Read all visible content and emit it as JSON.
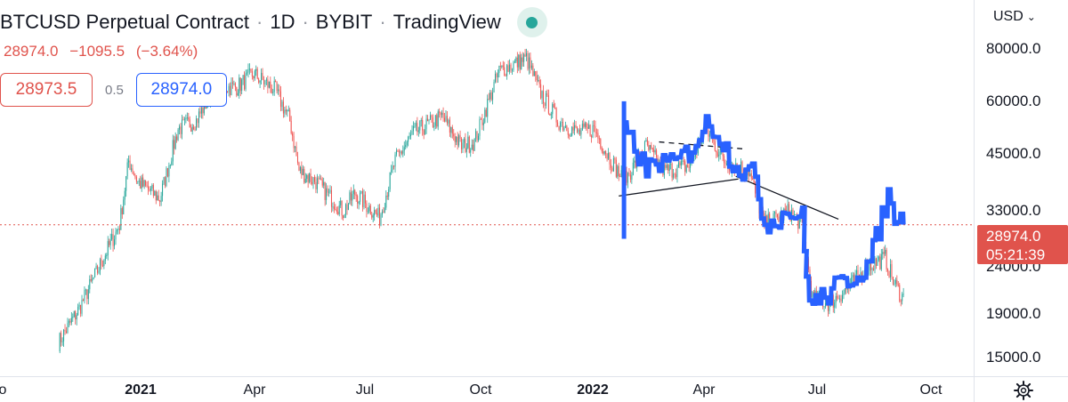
{
  "header": {
    "symbol": "BTCUSD Perpetual Contract",
    "separator": "·",
    "interval": "1D",
    "exchange": "BYBIT",
    "source": "TradingView"
  },
  "quote": {
    "last": "28974.0",
    "change": "−1095.5",
    "change_pct": "(−3.64%)"
  },
  "bid_ask": {
    "bid": "28973.5",
    "spread": "0.5",
    "ask": "28974.0"
  },
  "price_axis": {
    "currency": "USD",
    "labels": [
      "80000.0",
      "60000.0",
      "45000.0",
      "33000.0",
      "24000.0",
      "19000.0",
      "15000.0"
    ]
  },
  "time_axis": {
    "labels": [
      {
        "text": "o",
        "bold": false
      },
      {
        "text": "2021",
        "bold": true
      },
      {
        "text": "Apr",
        "bold": false
      },
      {
        "text": "Jul",
        "bold": false
      },
      {
        "text": "Oct",
        "bold": false
      },
      {
        "text": "2022",
        "bold": true
      },
      {
        "text": "Apr",
        "bold": false
      },
      {
        "text": "Jul",
        "bold": false
      },
      {
        "text": "Oct",
        "bold": false
      }
    ]
  },
  "current_price": {
    "price": "28974.0",
    "countdown": "05:21:39"
  },
  "colors": {
    "up": "#26a69a",
    "down": "#ef5350",
    "drawing": "#2962ff",
    "current_line": "#e0534c"
  },
  "chart_data": {
    "type": "candlestick",
    "interval": "1D",
    "scale": "log",
    "y_ticks": [
      80000,
      60000,
      45000,
      33000,
      24000,
      19000,
      15000
    ],
    "current_price": 28974.0,
    "price_series": {
      "x": [
        "2020-11-15",
        "2020-12-01",
        "2020-12-15",
        "2021-01-01",
        "2021-01-08",
        "2021-01-15",
        "2021-02-01",
        "2021-02-15",
        "2021-03-01",
        "2021-03-15",
        "2021-04-01",
        "2021-04-14",
        "2021-05-01",
        "2021-05-12",
        "2021-05-19",
        "2021-06-01",
        "2021-06-22",
        "2021-07-01",
        "2021-07-20",
        "2021-08-01",
        "2021-08-15",
        "2021-09-06",
        "2021-09-21",
        "2021-10-01",
        "2021-10-20",
        "2021-11-10",
        "2021-11-20",
        "2021-12-04",
        "2021-12-20",
        "2022-01-01",
        "2022-01-10",
        "2022-01-24",
        "2022-02-10",
        "2022-02-24",
        "2022-03-15",
        "2022-03-28",
        "2022-04-11",
        "2022-04-30",
        "2022-05-12",
        "2022-05-31",
        "2022-06-10",
        "2022-06-18",
        "2022-07-01",
        "2022-07-15",
        "2022-07-31",
        "2022-08-13",
        "2022-08-20",
        "2022-08-27"
      ],
      "y": [
        16000,
        19000,
        23000,
        29000,
        40000,
        36000,
        33000,
        47000,
        49000,
        58000,
        58000,
        62000,
        57000,
        49000,
        38000,
        36000,
        31000,
        34000,
        30000,
        40000,
        46000,
        50000,
        43000,
        44000,
        63000,
        67000,
        57000,
        49000,
        46000,
        47000,
        42000,
        36000,
        43000,
        38000,
        39000,
        47000,
        40000,
        38000,
        29000,
        31000,
        29000,
        20000,
        19500,
        21000,
        23500,
        24500,
        21500,
        20000
      ]
    },
    "drawing": {
      "color": "#2962ff",
      "x": [
        "2022-01-24",
        "2022-02-01",
        "2022-02-10",
        "2022-02-20",
        "2022-03-01",
        "2022-03-15",
        "2022-03-28",
        "2022-04-05",
        "2022-04-15",
        "2022-04-25",
        "2022-05-05",
        "2022-05-12",
        "2022-05-20",
        "2022-06-01",
        "2022-06-10",
        "2022-06-13",
        "2022-06-18",
        "2022-06-25",
        "2022-07-05",
        "2022-07-15",
        "2022-07-25",
        "2022-08-01",
        "2022-08-08",
        "2022-08-15",
        "2022-08-20",
        "2022-08-27"
      ],
      "y": [
        46000,
        43000,
        38000,
        40000,
        39000,
        42000,
        48000,
        47000,
        41000,
        38000,
        37000,
        29000,
        30000,
        31000,
        30000,
        22000,
        19500,
        20000,
        21000,
        22000,
        23000,
        24000,
        28500,
        33500,
        30500,
        29000
      ]
    },
    "trendlines": [
      {
        "style": "solid",
        "x": [
          "2022-01-20",
          "2022-04-22"
        ],
        "y": [
          33500,
          36500
        ]
      },
      {
        "style": "solid",
        "x": [
          "2022-04-20",
          "2022-07-08"
        ],
        "y": [
          37000,
          29800
        ]
      },
      {
        "style": "dashed",
        "x": [
          "2022-02-20",
          "2022-04-25"
        ],
        "y": [
          44000,
          42500
        ]
      }
    ],
    "xlim": [
      "2020-10-01",
      "2022-10-20"
    ],
    "ylim": [
      13500,
      90000
    ]
  }
}
